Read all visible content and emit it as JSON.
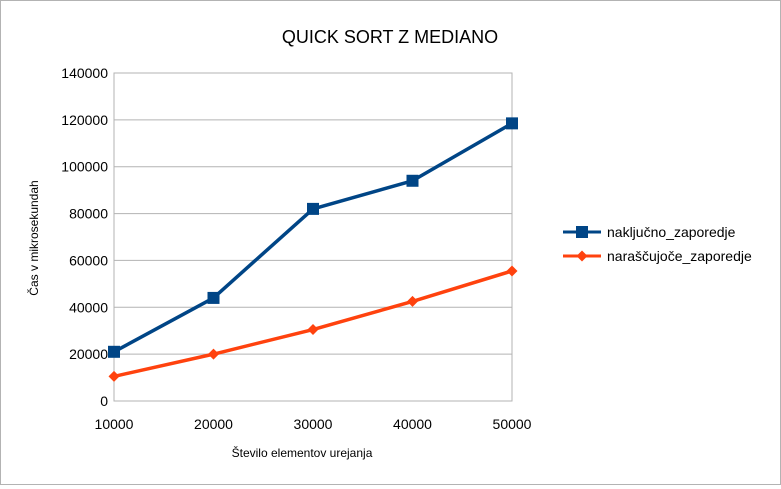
{
  "chart_data": {
    "type": "line",
    "title": "QUICK SORT Z MEDIANO",
    "xlabel": "Število elementov urejanja",
    "ylabel": "Čas v mikrosekundah",
    "x": [
      10000,
      20000,
      30000,
      40000,
      50000
    ],
    "x_tick_labels": [
      "10000",
      "20000",
      "30000",
      "40000",
      "50000"
    ],
    "ylim": [
      0,
      140000
    ],
    "y_ticks": [
      0,
      20000,
      40000,
      60000,
      80000,
      100000,
      120000,
      140000
    ],
    "y_tick_labels": [
      "0",
      "20000",
      "40000",
      "60000",
      "80000",
      "100000",
      "120000",
      "140000"
    ],
    "grid": "horizontal",
    "legend_position": "right",
    "series": [
      {
        "name": "naključno_zaporedje",
        "values": [
          21000,
          44000,
          82000,
          94000,
          118500
        ],
        "color": "#004586",
        "marker": "square"
      },
      {
        "name": "naraščujoče_zaporedje",
        "values": [
          10500,
          20000,
          30500,
          42500,
          55500
        ],
        "color": "#ff420e",
        "marker": "diamond"
      }
    ]
  }
}
